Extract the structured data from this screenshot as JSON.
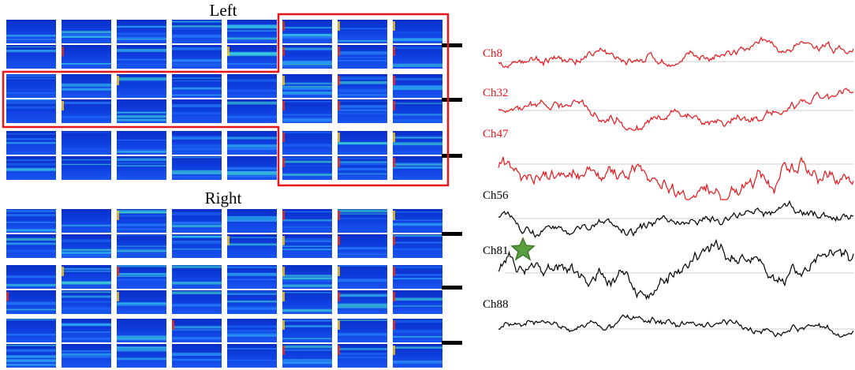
{
  "panels": {
    "left_title": "Left",
    "right_title": "Right"
  },
  "channels": [
    {
      "label": "Ch8"
    },
    {
      "label": "Ch32"
    },
    {
      "label": "Ch47"
    },
    {
      "label": "Ch56"
    },
    {
      "label": "Ch81"
    },
    {
      "label": "Ch88"
    }
  ]
}
